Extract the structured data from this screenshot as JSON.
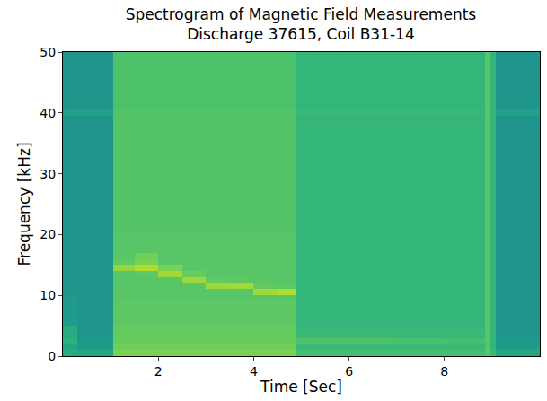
{
  "chart_data": {
    "type": "heatmap",
    "title": "Spectrogram of Magnetic Field Measurements\nDischarge 37615, Coil B31-14",
    "x_label": "Time [Sec]",
    "y_label": "Frequency [kHz]",
    "xlim": [
      0,
      10
    ],
    "ylim": [
      0,
      50
    ],
    "xticks": [
      2,
      4,
      6,
      8
    ],
    "yticks": [
      0,
      10,
      20,
      30,
      40,
      50
    ],
    "color": "Viridis",
    "zlim": [
      0,
      1
    ],
    "x_bins": [
      0,
      0.3,
      1.05,
      1.5,
      2.0,
      2.5,
      3.0,
      3.5,
      4.0,
      4.5,
      4.87,
      6.0,
      7.0,
      8.0,
      8.85,
      8.95,
      9.07,
      10
    ],
    "y_bins": [
      0,
      1,
      2,
      3,
      5,
      9,
      10,
      11,
      12,
      13,
      14,
      15,
      16,
      17,
      20,
      39.5,
      40.5,
      50
    ],
    "cells": [
      [
        0.62,
        0.6,
        0.8,
        0.8,
        0.8,
        0.8,
        0.8,
        0.8,
        0.8,
        0.8,
        0.7,
        0.7,
        0.7,
        0.7,
        0.74,
        0.68,
        0.6
      ],
      [
        0.6,
        0.54,
        0.78,
        0.78,
        0.78,
        0.78,
        0.78,
        0.78,
        0.78,
        0.78,
        0.68,
        0.68,
        0.68,
        0.68,
        0.74,
        0.66,
        0.54
      ],
      [
        0.64,
        0.53,
        0.77,
        0.77,
        0.77,
        0.77,
        0.77,
        0.77,
        0.77,
        0.77,
        0.72,
        0.72,
        0.71,
        0.7,
        0.74,
        0.66,
        0.53
      ],
      [
        0.62,
        0.52,
        0.76,
        0.76,
        0.76,
        0.76,
        0.76,
        0.76,
        0.76,
        0.76,
        0.67,
        0.67,
        0.67,
        0.67,
        0.74,
        0.66,
        0.52
      ],
      [
        0.54,
        0.52,
        0.75,
        0.75,
        0.75,
        0.75,
        0.75,
        0.75,
        0.75,
        0.75,
        0.66,
        0.66,
        0.66,
        0.66,
        0.74,
        0.66,
        0.52
      ],
      [
        0.53,
        0.52,
        0.74,
        0.74,
        0.74,
        0.74,
        0.74,
        0.74,
        0.74,
        0.74,
        0.66,
        0.66,
        0.66,
        0.66,
        0.74,
        0.66,
        0.52
      ],
      [
        0.52,
        0.52,
        0.74,
        0.74,
        0.74,
        0.74,
        0.74,
        0.74,
        0.86,
        0.88,
        0.66,
        0.66,
        0.66,
        0.66,
        0.74,
        0.66,
        0.52
      ],
      [
        0.52,
        0.52,
        0.74,
        0.74,
        0.74,
        0.74,
        0.85,
        0.86,
        0.76,
        0.75,
        0.66,
        0.66,
        0.66,
        0.66,
        0.74,
        0.66,
        0.52
      ],
      [
        0.52,
        0.52,
        0.74,
        0.74,
        0.74,
        0.85,
        0.76,
        0.75,
        0.74,
        0.74,
        0.66,
        0.66,
        0.66,
        0.66,
        0.74,
        0.66,
        0.52
      ],
      [
        0.52,
        0.52,
        0.74,
        0.75,
        0.86,
        0.77,
        0.74,
        0.74,
        0.74,
        0.74,
        0.66,
        0.66,
        0.66,
        0.66,
        0.74,
        0.66,
        0.52
      ],
      [
        0.52,
        0.52,
        0.84,
        0.88,
        0.8,
        0.74,
        0.74,
        0.74,
        0.74,
        0.74,
        0.66,
        0.66,
        0.66,
        0.66,
        0.74,
        0.66,
        0.52
      ],
      [
        0.52,
        0.52,
        0.76,
        0.8,
        0.74,
        0.74,
        0.74,
        0.74,
        0.74,
        0.74,
        0.66,
        0.66,
        0.66,
        0.66,
        0.74,
        0.66,
        0.52
      ],
      [
        0.52,
        0.52,
        0.74,
        0.78,
        0.74,
        0.74,
        0.74,
        0.74,
        0.74,
        0.74,
        0.66,
        0.66,
        0.66,
        0.66,
        0.74,
        0.66,
        0.52
      ],
      [
        0.52,
        0.52,
        0.74,
        0.74,
        0.74,
        0.74,
        0.74,
        0.74,
        0.74,
        0.74,
        0.66,
        0.66,
        0.66,
        0.66,
        0.74,
        0.66,
        0.52
      ],
      [
        0.52,
        0.52,
        0.73,
        0.73,
        0.73,
        0.73,
        0.73,
        0.73,
        0.73,
        0.73,
        0.66,
        0.66,
        0.66,
        0.66,
        0.74,
        0.66,
        0.52
      ],
      [
        0.57,
        0.57,
        0.73,
        0.73,
        0.73,
        0.73,
        0.73,
        0.73,
        0.73,
        0.73,
        0.67,
        0.67,
        0.67,
        0.67,
        0.74,
        0.67,
        0.57
      ],
      [
        0.52,
        0.52,
        0.72,
        0.72,
        0.72,
        0.72,
        0.72,
        0.72,
        0.72,
        0.72,
        0.66,
        0.66,
        0.66,
        0.66,
        0.74,
        0.66,
        0.52
      ]
    ],
    "grid": false
  }
}
